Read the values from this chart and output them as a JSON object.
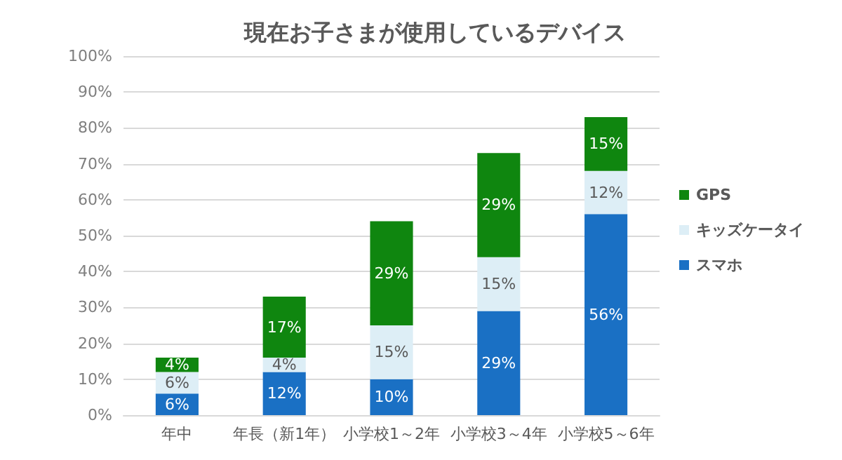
{
  "chart_data": {
    "type": "bar",
    "title": "現在お子さまが使用しているデバイス",
    "stacked": true,
    "categories": [
      "年中",
      "年長（新1年）",
      "小学校1～2年",
      "小学校3～4年",
      "小学校5～6年"
    ],
    "series": [
      {
        "name": "スマホ",
        "color": "#1a70c4",
        "values": [
          6,
          12,
          10,
          29,
          56
        ],
        "value_labels": [
          "6%",
          "12%",
          "10%",
          "29%",
          "56%"
        ]
      },
      {
        "name": "キッズケータイ",
        "color": "#ddeef6",
        "values": [
          6,
          4,
          15,
          15,
          12
        ],
        "value_labels": [
          "6%",
          "4%",
          "15%",
          "15%",
          "12%"
        ]
      },
      {
        "name": "GPS",
        "color": "#0f860f",
        "values": [
          4,
          17,
          29,
          29,
          15
        ],
        "value_labels": [
          "4%",
          "17%",
          "29%",
          "29%",
          "15%"
        ]
      }
    ],
    "ylim": [
      0,
      100
    ],
    "yticks": [
      {
        "value": 0,
        "label": "0%"
      },
      {
        "value": 10,
        "label": "10%"
      },
      {
        "value": 20,
        "label": "20%"
      },
      {
        "value": 30,
        "label": "30%"
      },
      {
        "value": 40,
        "label": "40%"
      },
      {
        "value": 50,
        "label": "50%"
      },
      {
        "value": 60,
        "label": "60%"
      },
      {
        "value": 70,
        "label": "70%"
      },
      {
        "value": 80,
        "label": "80%"
      },
      {
        "value": 90,
        "label": "90%"
      },
      {
        "value": 100,
        "label": "100%"
      }
    ],
    "grid": "y",
    "legend": "right"
  }
}
